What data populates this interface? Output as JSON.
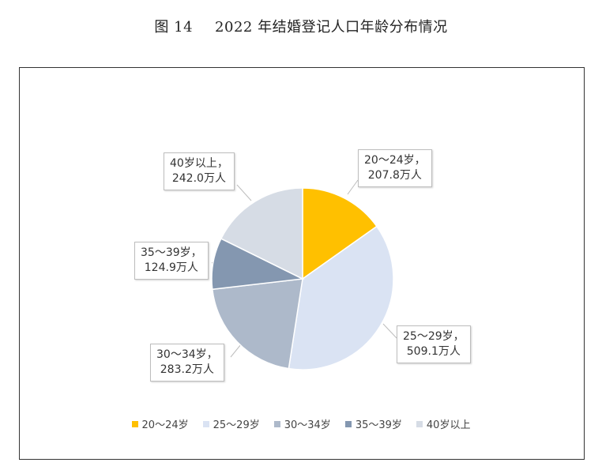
{
  "title": {
    "figure_number": "图 14",
    "text": "2022 年结婚登记人口年龄分布情况"
  },
  "chart_data": {
    "type": "pie",
    "title": "2022 年结婚登记人口年龄分布情况",
    "unit": "万人",
    "legend_position": "bottom",
    "slices": [
      {
        "name": "20～24岁",
        "value": 207.8,
        "color": "#ffc000",
        "label_line1": "20～24岁，",
        "label_line2": "207.8万人"
      },
      {
        "name": "25～29岁",
        "value": 509.1,
        "color": "#dae3f3",
        "label_line1": "25～29岁，",
        "label_line2": "509.1万人"
      },
      {
        "name": "30～34岁",
        "value": 283.2,
        "color": "#adb9ca",
        "label_line1": "30～34岁，",
        "label_line2": "283.2万人"
      },
      {
        "name": "35～39岁",
        "value": 124.9,
        "color": "#8497b0",
        "label_line1": "35～39岁，",
        "label_line2": "124.9万人"
      },
      {
        "name": "40岁以上",
        "value": 242.0,
        "color": "#d6dce5",
        "label_line1": "40岁以上，",
        "label_line2": "242.0万人"
      }
    ]
  }
}
